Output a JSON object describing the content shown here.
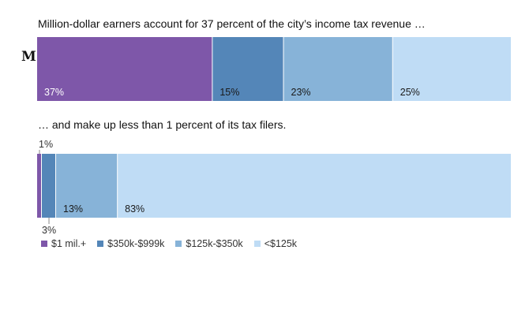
{
  "logo_text": "M",
  "chart_data": [
    {
      "type": "bar",
      "orientation": "horizontal-stacked",
      "title": "Million-dollar earners account for 37 percent of the city’s income tax revenue …",
      "categories": [
        "$1 mil.+",
        "$350k-$999k",
        "$125k-$350k",
        "<$125k"
      ],
      "values": [
        37,
        15,
        23,
        25
      ],
      "labels": [
        "37%",
        "15%",
        "23%",
        "25%"
      ],
      "unit": "percent",
      "xlim": [
        0,
        100
      ]
    },
    {
      "type": "bar",
      "orientation": "horizontal-stacked",
      "title": "… and make up less than 1 percent of its tax filers.",
      "categories": [
        "$1 mil.+",
        "$350k-$999k",
        "$125k-$350k",
        "<$125k"
      ],
      "values": [
        1,
        3,
        13,
        83
      ],
      "labels": [
        "1%",
        "3%",
        "13%",
        "83%"
      ],
      "unit": "percent",
      "xlim": [
        0,
        100
      ]
    }
  ],
  "legend": [
    {
      "label": "$1 mil.+",
      "color": "#7e57a9"
    },
    {
      "label": "$350k-$999k",
      "color": "#5486b8"
    },
    {
      "label": "$125k-$350k",
      "color": "#87b3d8"
    },
    {
      "label": "<$125k",
      "color": "#bfdcf5"
    }
  ],
  "colors": [
    "#7e57a9",
    "#5486b8",
    "#87b3d8",
    "#bfdcf5"
  ],
  "label_colors": [
    "#ffffff",
    "#1a1a1a",
    "#1a1a1a",
    "#1a1a1a"
  ]
}
